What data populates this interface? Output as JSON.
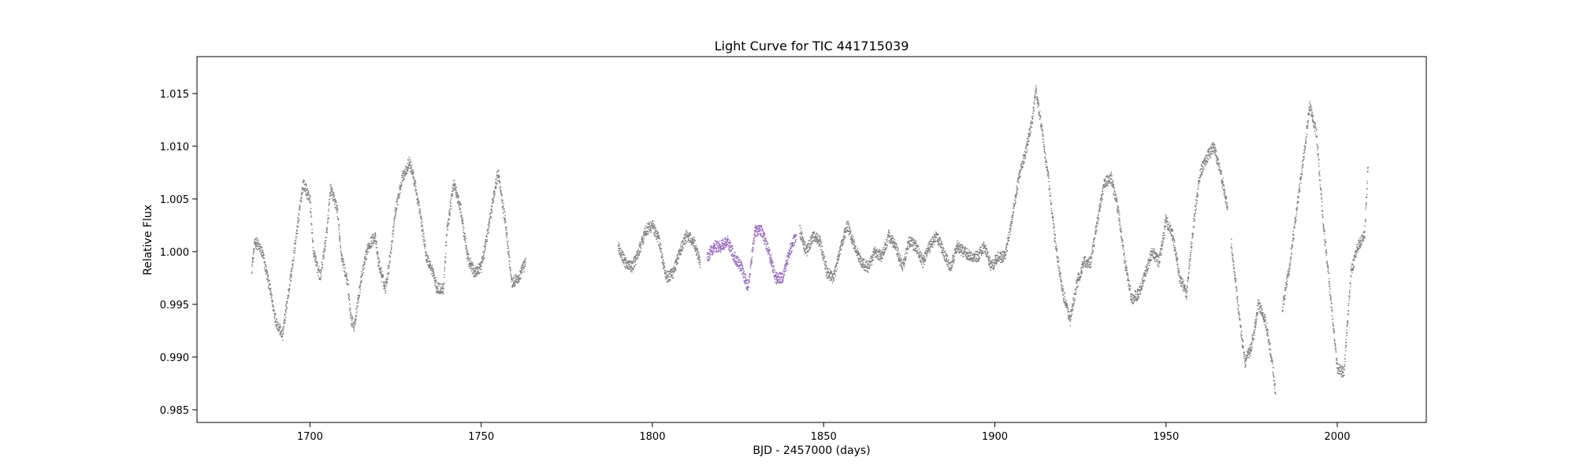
{
  "chart_data": {
    "type": "scatter",
    "title": "Light Curve for TIC 441715039",
    "xlabel": "BJD - 2457000 (days)",
    "ylabel": "Relative Flux",
    "xlim": [
      1667,
      2026
    ],
    "ylim": [
      0.9838,
      1.0185
    ],
    "xticks": [
      1700,
      1750,
      1800,
      1850,
      1900,
      1950,
      2000
    ],
    "yticks": [
      0.985,
      0.99,
      0.995,
      1.0,
      1.005,
      1.01,
      1.015
    ],
    "grid": false,
    "legend": "none",
    "series": [
      {
        "color": "#808080",
        "x": [
          1683,
          1684,
          1686,
          1688,
          1690,
          1692,
          1693,
          1695,
          1697,
          1698,
          1700,
          1701,
          1703,
          1705,
          1706,
          1708,
          1709,
          1711,
          1712,
          1713,
          1715,
          1717,
          1719,
          1720,
          1722,
          1723,
          1725,
          1727,
          1729,
          1730,
          1732,
          1734,
          1736,
          1737,
          1739,
          1740,
          1742,
          1744,
          1746,
          1748,
          1750,
          1752,
          1754,
          1755,
          1757,
          1759,
          1761,
          1763
        ],
        "y": [
          0.9985,
          1.001,
          1.0,
          0.997,
          0.9935,
          0.992,
          0.9945,
          0.999,
          1.004,
          1.0065,
          1.005,
          1.0,
          0.9975,
          1.002,
          1.006,
          1.004,
          1.0,
          0.997,
          0.9935,
          0.993,
          0.9975,
          1.0005,
          1.0015,
          0.999,
          0.9965,
          0.9985,
          1.004,
          1.007,
          1.0085,
          1.0075,
          1.004,
          0.9995,
          0.998,
          0.9965,
          0.9965,
          1.002,
          1.0065,
          1.004,
          0.9995,
          0.998,
          0.9985,
          1.002,
          1.006,
          1.0075,
          1.003,
          0.997,
          0.9975,
          0.999
        ]
      },
      {
        "color": "#808080",
        "x": [
          1790,
          1792,
          1794,
          1796,
          1798,
          1800,
          1802,
          1804,
          1806,
          1808,
          1810,
          1812,
          1814
        ],
        "y": [
          1.0005,
          0.999,
          0.9985,
          1.0,
          1.002,
          1.0025,
          1.001,
          0.9975,
          0.998,
          1.0,
          1.0015,
          1.001,
          0.999
        ]
      },
      {
        "color": "#9467bd",
        "x": [
          1816,
          1818,
          1820,
          1822,
          1824,
          1826,
          1828,
          1829,
          1830,
          1832,
          1834,
          1836,
          1838,
          1840,
          1842
        ],
        "y": [
          0.9995,
          1.0005,
          1.0005,
          1.001,
          0.9995,
          0.9985,
          0.9965,
          0.9995,
          1.002,
          1.002,
          1.0,
          0.9975,
          0.9975,
          1.0,
          1.0015
        ]
      },
      {
        "color": "#808080",
        "x": [
          1843,
          1845,
          1847,
          1849,
          1851,
          1853,
          1855,
          1857,
          1859,
          1861,
          1863,
          1865,
          1867,
          1869,
          1871,
          1873,
          1875,
          1877,
          1879,
          1881,
          1883,
          1885,
          1887,
          1889,
          1891,
          1893,
          1895,
          1897,
          1899,
          1901,
          1903,
          1905,
          1907,
          1909,
          1911,
          1912,
          1914,
          1916,
          1918,
          1920,
          1922,
          1924,
          1926,
          1928,
          1930,
          1932,
          1934,
          1936,
          1938,
          1940,
          1942,
          1944,
          1946,
          1948,
          1950,
          1952,
          1954,
          1956,
          1958,
          1960,
          1962,
          1964,
          1966,
          1968
        ],
        "y": [
          1.002,
          1.0,
          1.0015,
          1.001,
          0.998,
          0.9975,
          1.0005,
          1.0025,
          1.0005,
          0.999,
          0.9985,
          1.0,
          0.9995,
          1.0015,
          1.0005,
          0.9985,
          1.001,
          1.0005,
          0.999,
          1.0005,
          1.0015,
          1.0,
          0.9985,
          1.0005,
          1.0,
          0.9995,
          0.9995,
          1.0005,
          0.9985,
          0.9995,
          0.9995,
          1.003,
          1.007,
          1.0095,
          1.0125,
          1.0155,
          1.011,
          1.006,
          1.0,
          0.996,
          0.9935,
          0.997,
          0.999,
          0.999,
          1.003,
          1.0065,
          1.007,
          1.004,
          0.999,
          0.9955,
          0.996,
          0.998,
          1.0,
          0.999,
          1.003,
          1.0015,
          0.9975,
          0.996,
          1.0025,
          1.0075,
          1.009,
          1.01,
          1.0075,
          1.004
        ]
      },
      {
        "color": "#808080",
        "x": [
          1969,
          1971,
          1973,
          1975,
          1977,
          1979,
          1981,
          1982
        ],
        "y": [
          1.001,
          0.995,
          0.9895,
          0.991,
          0.995,
          0.9935,
          0.9895,
          0.9865
        ]
      },
      {
        "color": "#808080",
        "x": [
          1984,
          1986,
          1988,
          1990,
          1992,
          1994,
          1996,
          1998,
          2000,
          2002,
          2004,
          2006,
          2008,
          2009
        ],
        "y": [
          0.9945,
          0.9985,
          1.0035,
          1.0085,
          1.014,
          1.011,
          1.0025,
          0.996,
          0.989,
          0.9885,
          0.998,
          1.0005,
          1.0015,
          1.008
        ]
      }
    ]
  }
}
